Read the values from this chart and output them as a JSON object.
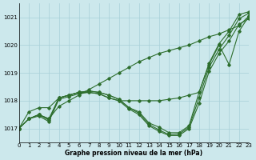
{
  "xlabel": "Graphe pression niveau de la mer (hPa)",
  "bg_color": "#cce8ec",
  "grid_color": "#a8d0d8",
  "line_color": "#2d6e2d",
  "ylim": [
    1016.5,
    1021.5
  ],
  "xlim": [
    0,
    23
  ],
  "yticks": [
    1017,
    1018,
    1019,
    1020,
    1021
  ],
  "xticks": [
    0,
    1,
    2,
    3,
    4,
    5,
    6,
    7,
    8,
    9,
    10,
    11,
    12,
    13,
    14,
    15,
    16,
    17,
    18,
    19,
    20,
    21,
    22,
    23
  ],
  "lines": [
    [
      1017.0,
      1017.35,
      1017.5,
      1017.35,
      1018.1,
      1018.2,
      1018.3,
      1018.35,
      1018.3,
      1018.2,
      1018.05,
      1017.75,
      1017.6,
      1017.2,
      1017.05,
      1016.85,
      1016.85,
      1017.1,
      1018.3,
      1019.3,
      1020.0,
      1019.3,
      1020.5,
      1021.05
    ],
    [
      1017.0,
      1017.35,
      1017.5,
      1017.3,
      1018.1,
      1018.2,
      1018.3,
      1018.35,
      1018.3,
      1018.2,
      1018.05,
      1017.75,
      1017.55,
      1017.15,
      1016.95,
      1016.78,
      1016.8,
      1017.05,
      1018.1,
      1019.2,
      1019.85,
      1020.35,
      1020.95,
      1021.15
    ],
    [
      1017.0,
      1017.35,
      1017.45,
      1017.25,
      1018.05,
      1018.15,
      1018.25,
      1018.3,
      1018.25,
      1018.1,
      1018.0,
      1017.7,
      1017.5,
      1017.1,
      1016.9,
      1016.75,
      1016.75,
      1017.0,
      1017.9,
      1019.05,
      1019.7,
      1020.15,
      1020.75,
      1020.95
    ],
    [
      1017.0,
      1017.6,
      1017.75,
      1017.75,
      1018.1,
      1018.2,
      1018.3,
      1018.3,
      1018.25,
      1018.1,
      1018.0,
      1018.0,
      1018.0,
      1018.0,
      1018.0,
      1018.05,
      1018.1,
      1018.2,
      1018.3,
      1019.35,
      1020.05,
      1020.5,
      1021.1,
      1021.2
    ]
  ],
  "steep_line": [
    1017.0,
    1017.35,
    1017.5,
    1017.35,
    1017.8,
    1018.0,
    1018.2,
    1018.4,
    1018.6,
    1018.8,
    1019.0,
    1019.2,
    1019.4,
    1019.55,
    1019.7,
    1019.8,
    1019.9,
    1020.0,
    1020.15,
    1020.3,
    1020.4,
    1020.55,
    1020.7,
    1021.05
  ]
}
